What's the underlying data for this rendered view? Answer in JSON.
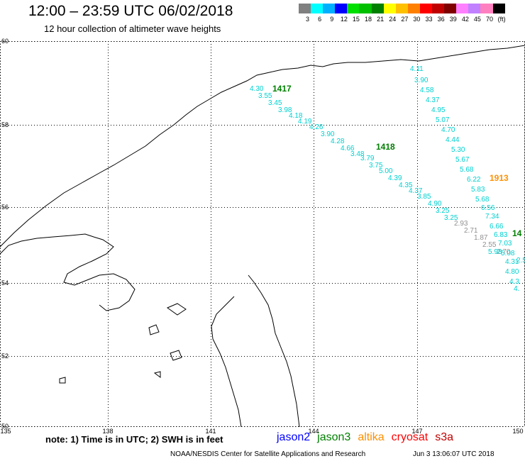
{
  "header": {
    "title": "12:00 – 23:59 UTC 06/02/2018",
    "subtitle": "12 hour collection of altimeter wave heights"
  },
  "colorbar": {
    "labels": [
      "3",
      "6",
      "9",
      "12",
      "15",
      "18",
      "21",
      "24",
      "27",
      "30",
      "33",
      "36",
      "39",
      "42",
      "45",
      "70",
      "(ft)"
    ],
    "colors": [
      "#808080",
      "#00ffff",
      "#00b0ff",
      "#0000ff",
      "#00e000",
      "#00c000",
      "#008000",
      "#ffff00",
      "#ffc000",
      "#ff8000",
      "#ff0000",
      "#c00000",
      "#800000",
      "#ff80ff",
      "#c080ff",
      "#ff80c0",
      "#000000"
    ]
  },
  "map": {
    "lat_ticks": [
      "60",
      "58",
      "56",
      "54",
      "52",
      "50"
    ],
    "lon_ticks": [
      "135",
      "138",
      "141",
      "144",
      "147",
      "150"
    ],
    "pass_labels": [
      {
        "text": "1417",
        "color": "#008000"
      },
      {
        "text": "1418",
        "color": "#008000"
      },
      {
        "text": "1913",
        "color": "#ff9000"
      },
      {
        "text": "14",
        "color": "#008000"
      }
    ],
    "track1": [
      "4.30",
      "3.55",
      "3.45",
      "3.98",
      "4.18",
      "4.19",
      "4.26",
      "3.90",
      "4.28",
      "4.66",
      "3.48",
      "3.79",
      "3.75",
      "5.00",
      "4.39",
      "4.35",
      "4.37",
      "3.85",
      "4.90",
      "3.25",
      "3.25",
      "2.93",
      "2.71",
      "1.87",
      "2.55",
      "2.70",
      "2.5"
    ],
    "track2": [
      "4.11",
      "3.90",
      "4.58",
      "4.37",
      "4.95",
      "5.07",
      "4.70",
      "4.44",
      "5.30",
      "5.67",
      "5.68",
      "6.22",
      "5.83",
      "5.68",
      "6.56",
      "7.34",
      "6.66",
      "6.83",
      "7.03",
      "5.98",
      "5.08",
      "4.31",
      "4.80",
      "4.3",
      "4."
    ]
  },
  "footer": {
    "note": "note:  1) Time is in UTC;  2) SWH is in feet",
    "satellites": [
      {
        "name": "jason2",
        "color": "#0000ff"
      },
      {
        "name": "jason3",
        "color": "#008000"
      },
      {
        "name": "altika",
        "color": "#ff9000"
      },
      {
        "name": "cryosat",
        "color": "#ff0000"
      },
      {
        "name": "s3a",
        "color": "#c00000"
      }
    ],
    "credit": "NOAA/NESDIS Center for Satellite Applications and Research",
    "timestamp": "Jun  3 13:06:07 UTC 2018"
  }
}
